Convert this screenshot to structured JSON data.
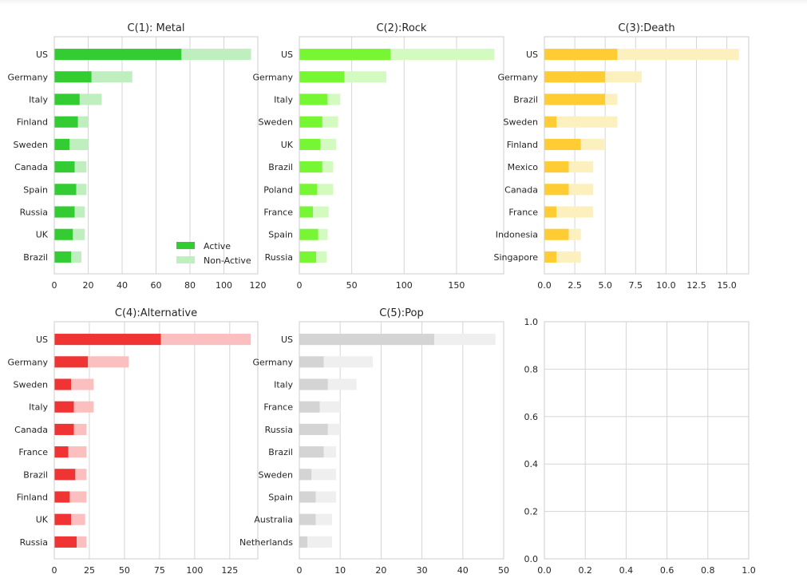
{
  "chart_data": [
    {
      "type": "bar",
      "orientation": "horizontal",
      "stacked": true,
      "title": "C(1): Metal",
      "categories": [
        "US",
        "Germany",
        "Italy",
        "Finland",
        "Sweden",
        "Canada",
        "Spain",
        "Russia",
        "UK",
        "Brazil"
      ],
      "series": [
        {
          "name": "Active",
          "color": "#33cc33",
          "values": [
            75,
            22,
            15,
            14,
            9,
            12,
            13,
            12,
            11,
            10
          ]
        },
        {
          "name": "Non-Active",
          "color": "#bfeebf",
          "values": [
            41,
            24,
            13,
            6,
            11,
            7,
            6,
            6,
            7,
            6
          ]
        }
      ],
      "xlim": [
        0,
        120
      ],
      "xticks": [
        "0",
        "20",
        "40",
        "60",
        "80",
        "100",
        "120"
      ],
      "xtick_values": [
        0,
        20,
        40,
        60,
        80,
        100,
        120
      ],
      "legend": "lower-right",
      "grid": "vertical"
    },
    {
      "type": "bar",
      "orientation": "horizontal",
      "stacked": true,
      "title": "C(2):Rock",
      "categories": [
        "US",
        "Germany",
        "Italy",
        "Sweden",
        "UK",
        "Brazil",
        "Poland",
        "France",
        "Spain",
        "Russia"
      ],
      "series": [
        {
          "name": "Active",
          "color": "#77f633",
          "values": [
            87,
            43,
            27,
            22,
            20,
            22,
            17,
            13,
            18,
            16
          ]
        },
        {
          "name": "Non-Active",
          "color": "#d4fbbf",
          "values": [
            99,
            40,
            12,
            15,
            15,
            10,
            15,
            15,
            9,
            10
          ]
        }
      ],
      "xlim": [
        0,
        195
      ],
      "xticks": [
        "0",
        "50",
        "100",
        "150"
      ],
      "xtick_values": [
        0,
        50,
        100,
        150
      ],
      "grid": "vertical"
    },
    {
      "type": "bar",
      "orientation": "horizontal",
      "stacked": true,
      "title": "C(3):Death",
      "categories": [
        "US",
        "Germany",
        "Brazil",
        "Sweden",
        "Finland",
        "Mexico",
        "Canada",
        "France",
        "Indonesia",
        "Singapore"
      ],
      "series": [
        {
          "name": "Active",
          "color": "#ffcc33",
          "values": [
            6,
            5,
            5,
            1,
            3,
            2,
            2,
            1,
            2,
            1
          ]
        },
        {
          "name": "Non-Active",
          "color": "#fdf0bf",
          "values": [
            10,
            3,
            1,
            5,
            2,
            2,
            2,
            3,
            1,
            2
          ]
        }
      ],
      "xlim": [
        0,
        16.8
      ],
      "xticks": [
        "0.0",
        "2.5",
        "5.0",
        "7.5",
        "10.0",
        "12.5",
        "15.0"
      ],
      "xtick_values": [
        0,
        2.5,
        5,
        7.5,
        10,
        12.5,
        15
      ],
      "grid": "vertical"
    },
    {
      "type": "bar",
      "orientation": "horizontal",
      "stacked": true,
      "title": "C(4):Alternative",
      "categories": [
        "US",
        "Germany",
        "Sweden",
        "Italy",
        "Canada",
        "France",
        "Brazil",
        "Finland",
        "UK",
        "Russia"
      ],
      "series": [
        {
          "name": "Active",
          "color": "#f03333",
          "values": [
            76,
            24,
            12,
            14,
            14,
            10,
            15,
            11,
            12,
            16
          ]
        },
        {
          "name": "Non-Active",
          "color": "#fbbfbf",
          "values": [
            64,
            29,
            16,
            14,
            9,
            13,
            8,
            12,
            10,
            7
          ]
        }
      ],
      "xlim": [
        0,
        145
      ],
      "xticks": [
        "0",
        "25",
        "50",
        "75",
        "100",
        "125"
      ],
      "xtick_values": [
        0,
        25,
        50,
        75,
        100,
        125
      ],
      "grid": "vertical"
    },
    {
      "type": "bar",
      "orientation": "horizontal",
      "stacked": true,
      "title": "C(5):Pop",
      "categories": [
        "US",
        "Germany",
        "Italy",
        "France",
        "Russia",
        "Brazil",
        "Sweden",
        "Spain",
        "Australia",
        "Netherlands"
      ],
      "series": [
        {
          "name": "Active",
          "color": "#d4d4d4",
          "values": [
            33,
            6,
            7,
            5,
            7,
            6,
            3,
            4,
            4,
            2
          ]
        },
        {
          "name": "Non-Active",
          "color": "#efefef",
          "values": [
            15,
            12,
            7,
            5,
            3,
            3,
            6,
            5,
            4,
            6
          ]
        }
      ],
      "xlim": [
        0,
        50
      ],
      "xticks": [
        "0",
        "10",
        "20",
        "30",
        "40",
        "50"
      ],
      "xtick_values": [
        0,
        10,
        20,
        30,
        40,
        50
      ],
      "grid": "vertical"
    },
    {
      "type": "empty",
      "title": "",
      "xlim": [
        0,
        1
      ],
      "ylim": [
        0,
        1
      ],
      "xticks": [
        "0.0",
        "0.2",
        "0.4",
        "0.6",
        "0.8",
        "1.0"
      ],
      "xtick_values": [
        0,
        0.2,
        0.4,
        0.6,
        0.8,
        1.0
      ],
      "yticks": [
        "0.0",
        "0.2",
        "0.4",
        "0.6",
        "0.8",
        "1.0"
      ],
      "ytick_values": [
        0,
        0.2,
        0.4,
        0.6,
        0.8,
        1.0
      ],
      "grid": "both"
    }
  ],
  "legend": {
    "active_label": "Active",
    "nonactive_label": "Non-Active",
    "active_color": "#33cc33",
    "nonactive_color": "#bfeebf"
  }
}
